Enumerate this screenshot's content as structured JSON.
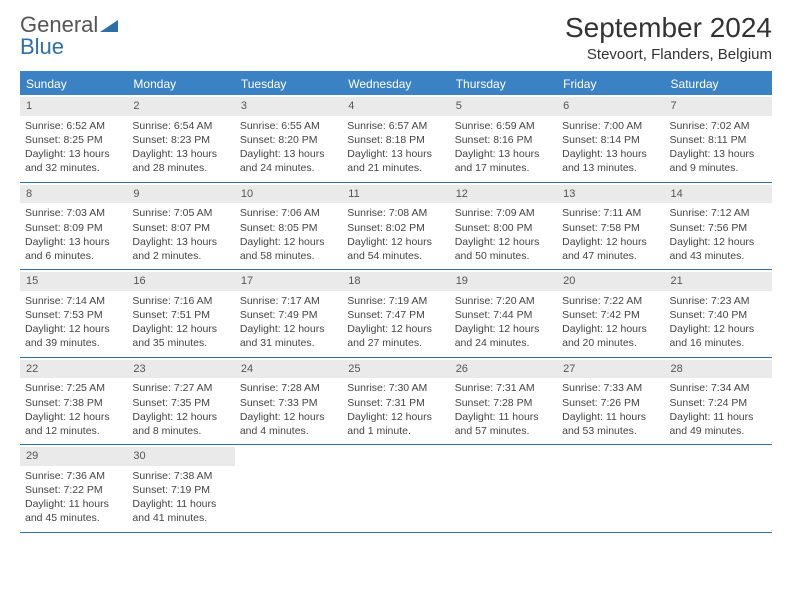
{
  "brand": {
    "name1": "General",
    "name2": "Blue"
  },
  "title": "September 2024",
  "location": "Stevoort, Flanders, Belgium",
  "colors": {
    "accent": "#3b82c4",
    "accent_dark": "#2f6fa8",
    "band": "#eaeaea",
    "text": "#333333",
    "bg": "#ffffff"
  },
  "day_headers": [
    "Sunday",
    "Monday",
    "Tuesday",
    "Wednesday",
    "Thursday",
    "Friday",
    "Saturday"
  ],
  "weeks": [
    [
      {
        "n": "1",
        "sr": "Sunrise: 6:52 AM",
        "ss": "Sunset: 8:25 PM",
        "dl": "Daylight: 13 hours and 32 minutes."
      },
      {
        "n": "2",
        "sr": "Sunrise: 6:54 AM",
        "ss": "Sunset: 8:23 PM",
        "dl": "Daylight: 13 hours and 28 minutes."
      },
      {
        "n": "3",
        "sr": "Sunrise: 6:55 AM",
        "ss": "Sunset: 8:20 PM",
        "dl": "Daylight: 13 hours and 24 minutes."
      },
      {
        "n": "4",
        "sr": "Sunrise: 6:57 AM",
        "ss": "Sunset: 8:18 PM",
        "dl": "Daylight: 13 hours and 21 minutes."
      },
      {
        "n": "5",
        "sr": "Sunrise: 6:59 AM",
        "ss": "Sunset: 8:16 PM",
        "dl": "Daylight: 13 hours and 17 minutes."
      },
      {
        "n": "6",
        "sr": "Sunrise: 7:00 AM",
        "ss": "Sunset: 8:14 PM",
        "dl": "Daylight: 13 hours and 13 minutes."
      },
      {
        "n": "7",
        "sr": "Sunrise: 7:02 AM",
        "ss": "Sunset: 8:11 PM",
        "dl": "Daylight: 13 hours and 9 minutes."
      }
    ],
    [
      {
        "n": "8",
        "sr": "Sunrise: 7:03 AM",
        "ss": "Sunset: 8:09 PM",
        "dl": "Daylight: 13 hours and 6 minutes."
      },
      {
        "n": "9",
        "sr": "Sunrise: 7:05 AM",
        "ss": "Sunset: 8:07 PM",
        "dl": "Daylight: 13 hours and 2 minutes."
      },
      {
        "n": "10",
        "sr": "Sunrise: 7:06 AM",
        "ss": "Sunset: 8:05 PM",
        "dl": "Daylight: 12 hours and 58 minutes."
      },
      {
        "n": "11",
        "sr": "Sunrise: 7:08 AM",
        "ss": "Sunset: 8:02 PM",
        "dl": "Daylight: 12 hours and 54 minutes."
      },
      {
        "n": "12",
        "sr": "Sunrise: 7:09 AM",
        "ss": "Sunset: 8:00 PM",
        "dl": "Daylight: 12 hours and 50 minutes."
      },
      {
        "n": "13",
        "sr": "Sunrise: 7:11 AM",
        "ss": "Sunset: 7:58 PM",
        "dl": "Daylight: 12 hours and 47 minutes."
      },
      {
        "n": "14",
        "sr": "Sunrise: 7:12 AM",
        "ss": "Sunset: 7:56 PM",
        "dl": "Daylight: 12 hours and 43 minutes."
      }
    ],
    [
      {
        "n": "15",
        "sr": "Sunrise: 7:14 AM",
        "ss": "Sunset: 7:53 PM",
        "dl": "Daylight: 12 hours and 39 minutes."
      },
      {
        "n": "16",
        "sr": "Sunrise: 7:16 AM",
        "ss": "Sunset: 7:51 PM",
        "dl": "Daylight: 12 hours and 35 minutes."
      },
      {
        "n": "17",
        "sr": "Sunrise: 7:17 AM",
        "ss": "Sunset: 7:49 PM",
        "dl": "Daylight: 12 hours and 31 minutes."
      },
      {
        "n": "18",
        "sr": "Sunrise: 7:19 AM",
        "ss": "Sunset: 7:47 PM",
        "dl": "Daylight: 12 hours and 27 minutes."
      },
      {
        "n": "19",
        "sr": "Sunrise: 7:20 AM",
        "ss": "Sunset: 7:44 PM",
        "dl": "Daylight: 12 hours and 24 minutes."
      },
      {
        "n": "20",
        "sr": "Sunrise: 7:22 AM",
        "ss": "Sunset: 7:42 PM",
        "dl": "Daylight: 12 hours and 20 minutes."
      },
      {
        "n": "21",
        "sr": "Sunrise: 7:23 AM",
        "ss": "Sunset: 7:40 PM",
        "dl": "Daylight: 12 hours and 16 minutes."
      }
    ],
    [
      {
        "n": "22",
        "sr": "Sunrise: 7:25 AM",
        "ss": "Sunset: 7:38 PM",
        "dl": "Daylight: 12 hours and 12 minutes."
      },
      {
        "n": "23",
        "sr": "Sunrise: 7:27 AM",
        "ss": "Sunset: 7:35 PM",
        "dl": "Daylight: 12 hours and 8 minutes."
      },
      {
        "n": "24",
        "sr": "Sunrise: 7:28 AM",
        "ss": "Sunset: 7:33 PM",
        "dl": "Daylight: 12 hours and 4 minutes."
      },
      {
        "n": "25",
        "sr": "Sunrise: 7:30 AM",
        "ss": "Sunset: 7:31 PM",
        "dl": "Daylight: 12 hours and 1 minute."
      },
      {
        "n": "26",
        "sr": "Sunrise: 7:31 AM",
        "ss": "Sunset: 7:28 PM",
        "dl": "Daylight: 11 hours and 57 minutes."
      },
      {
        "n": "27",
        "sr": "Sunrise: 7:33 AM",
        "ss": "Sunset: 7:26 PM",
        "dl": "Daylight: 11 hours and 53 minutes."
      },
      {
        "n": "28",
        "sr": "Sunrise: 7:34 AM",
        "ss": "Sunset: 7:24 PM",
        "dl": "Daylight: 11 hours and 49 minutes."
      }
    ],
    [
      {
        "n": "29",
        "sr": "Sunrise: 7:36 AM",
        "ss": "Sunset: 7:22 PM",
        "dl": "Daylight: 11 hours and 45 minutes."
      },
      {
        "n": "30",
        "sr": "Sunrise: 7:38 AM",
        "ss": "Sunset: 7:19 PM",
        "dl": "Daylight: 11 hours and 41 minutes."
      },
      null,
      null,
      null,
      null,
      null
    ]
  ]
}
